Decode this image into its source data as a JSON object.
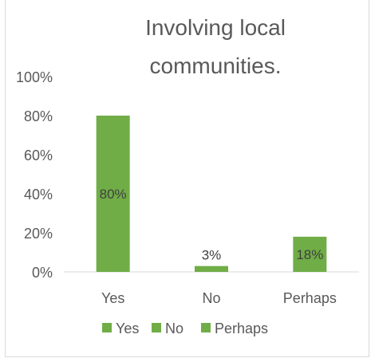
{
  "chart_data": {
    "type": "bar",
    "title_lines": [
      "Involving local",
      "communities."
    ],
    "categories": [
      "Yes",
      "No",
      "Perhaps"
    ],
    "values": [
      80,
      3,
      18
    ],
    "data_labels": [
      "80%",
      "3%",
      "18%"
    ],
    "ylim": [
      0,
      100
    ],
    "y_ticks": [
      "0%",
      "20%",
      "40%",
      "60%",
      "80%",
      "100%"
    ],
    "y_tick_values": [
      0,
      20,
      40,
      60,
      80,
      100
    ],
    "grid": false,
    "legend": {
      "placement": "bottom",
      "entries": [
        "Yes",
        "No",
        "Perhaps"
      ]
    },
    "colors": {
      "bar": "#70ad47",
      "axis": "#d9d9d9",
      "text": "#595959"
    }
  }
}
